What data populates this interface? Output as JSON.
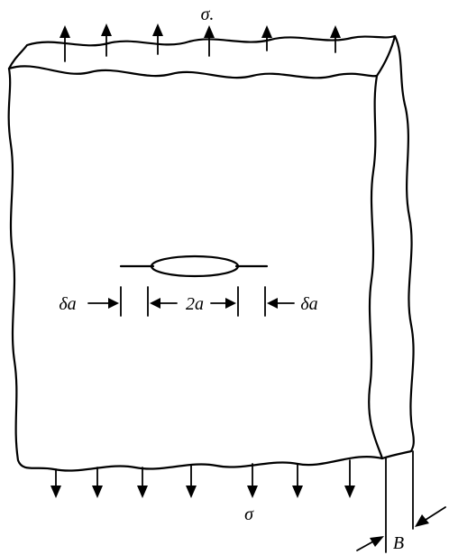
{
  "labels": {
    "stress_top": "σ.",
    "stress_bottom": "σ",
    "crack_length": "2a",
    "crack_increment_left": "δa",
    "crack_increment_right": "δa",
    "thickness": "B"
  },
  "colors": {
    "ink": "#000000",
    "background": "#ffffff"
  }
}
